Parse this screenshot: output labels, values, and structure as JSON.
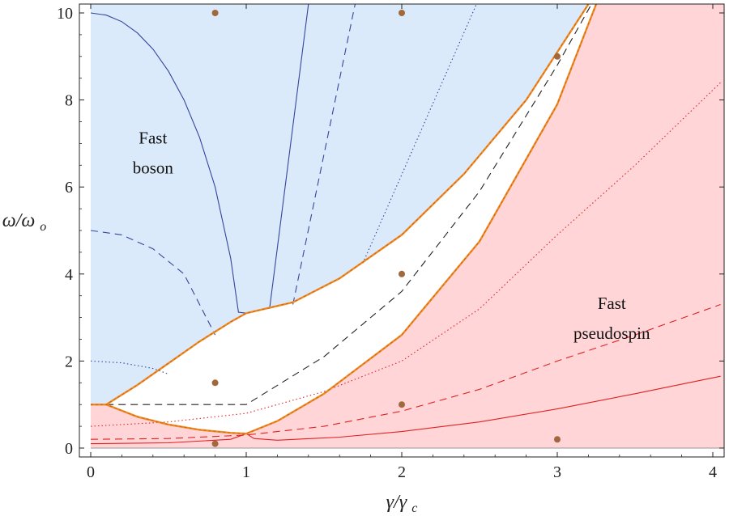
{
  "chart_data": {
    "type": "line",
    "title": "",
    "xlabel": "γ/γc",
    "ylabel": "ω/ωo",
    "xlim": [
      0,
      4.1
    ],
    "ylim": [
      0,
      10.2
    ],
    "xticks": [
      "0",
      "1",
      "2",
      "3",
      "4"
    ],
    "xtick_values": [
      0,
      1,
      2,
      3,
      4
    ],
    "yticks": [
      "0",
      "2",
      "4",
      "6",
      "8",
      "10"
    ],
    "ytick_values": [
      0,
      2,
      4,
      6,
      8,
      10
    ],
    "annotations": [
      {
        "lines": [
          "Fast",
          "boson"
        ],
        "x": 0.4,
        "y": 7.0
      },
      {
        "lines": [
          "Fast",
          "pseudospin"
        ],
        "x": 3.35,
        "y": 3.2
      }
    ],
    "colors": {
      "boson_region": "#dbeafa",
      "pseudospin_region": "#ffd5d7",
      "boundary": "#f08a24",
      "blue_curve": "#34469a",
      "red_curve": "#e02222",
      "black_curve": "#222222",
      "points": "#a0683c"
    },
    "regions": {
      "upper_boundary": [
        [
          0,
          1
        ],
        [
          0.1,
          1
        ],
        [
          0.3,
          1.45
        ],
        [
          0.5,
          1.95
        ],
        [
          0.7,
          2.45
        ],
        [
          0.9,
          2.9
        ],
        [
          1,
          3.1
        ],
        [
          1.3,
          3.35
        ],
        [
          1.6,
          3.9
        ],
        [
          2,
          4.9
        ],
        [
          2.4,
          6.3
        ],
        [
          2.8,
          8
        ],
        [
          3.2,
          10.2
        ]
      ],
      "lower_boundary": [
        [
          0,
          1
        ],
        [
          0.1,
          1
        ],
        [
          0.3,
          0.72
        ],
        [
          0.5,
          0.54
        ],
        [
          0.7,
          0.42
        ],
        [
          0.9,
          0.35
        ],
        [
          1,
          0.33
        ],
        [
          1.2,
          0.62
        ],
        [
          1.5,
          1.25
        ],
        [
          2,
          2.6
        ],
        [
          2.5,
          4.75
        ],
        [
          3,
          7.9
        ],
        [
          3.25,
          10.2
        ]
      ]
    },
    "series": [
      {
        "name": "blue solid",
        "color": "blue",
        "dash": "solid",
        "x": [
          0,
          0.1,
          0.2,
          0.3,
          0.4,
          0.5,
          0.6,
          0.7,
          0.8,
          0.9,
          0.95,
          1.0
        ],
        "y": [
          10,
          9.95,
          9.8,
          9.54,
          9.17,
          8.66,
          8,
          7.14,
          6,
          4.36,
          3.12,
          3.1
        ]
      },
      {
        "name": "blue dashed",
        "color": "blue",
        "dash": "dashed",
        "x": [
          0,
          0.2,
          0.4,
          0.6,
          0.8
        ],
        "y": [
          5,
          4.9,
          4.58,
          4.0,
          2.6
        ]
      },
      {
        "name": "blue dotted",
        "color": "blue",
        "dash": "dotted",
        "x": [
          0,
          0.2,
          0.4,
          0.5
        ],
        "y": [
          2,
          1.96,
          1.83,
          1.7
        ]
      },
      {
        "name": "blue solid steep",
        "color": "blue",
        "dash": "solid",
        "x": [
          1.15,
          1.4
        ],
        "y": [
          3.2,
          10.2
        ]
      },
      {
        "name": "blue dashed steep",
        "color": "blue",
        "dash": "dashed",
        "x": [
          1.3,
          1.7
        ],
        "y": [
          3.3,
          10.2
        ]
      },
      {
        "name": "blue dotted steep",
        "color": "blue",
        "dash": "dotted",
        "x": [
          1.75,
          2.48
        ],
        "y": [
          4.25,
          10.2
        ]
      },
      {
        "name": "black dashed",
        "color": "black",
        "dash": "dashed",
        "x": [
          0.1,
          1,
          1.5,
          2,
          2.5,
          3,
          3.22
        ],
        "y": [
          1,
          1,
          2.1,
          3.6,
          5.9,
          8.8,
          10.2
        ]
      },
      {
        "name": "red dotted",
        "color": "red",
        "dash": "dotted",
        "x": [
          0,
          0.5,
          1,
          1.5,
          2,
          2.5,
          3,
          3.5,
          4.05
        ],
        "y": [
          0.5,
          0.6,
          0.8,
          1.3,
          2.0,
          3.2,
          4.9,
          6.5,
          8.4
        ]
      },
      {
        "name": "red dashed",
        "color": "red",
        "dash": "dashed",
        "x": [
          0,
          0.5,
          1,
          1.5,
          2,
          2.5,
          3,
          3.5,
          4.05
        ],
        "y": [
          0.2,
          0.22,
          0.3,
          0.5,
          0.85,
          1.35,
          2.0,
          2.6,
          3.3
        ]
      },
      {
        "name": "red solid",
        "color": "red",
        "dash": "solid",
        "x": [
          0,
          0.5,
          0.9,
          1,
          1.05,
          1.2,
          1.6,
          2,
          2.5,
          3,
          3.5,
          4.05
        ],
        "y": [
          0.1,
          0.12,
          0.2,
          0.33,
          0.22,
          0.18,
          0.25,
          0.38,
          0.6,
          0.9,
          1.25,
          1.65
        ]
      }
    ],
    "points": [
      {
        "x": 0.8,
        "y": 10
      },
      {
        "x": 2,
        "y": 10
      },
      {
        "x": 3,
        "y": 9
      },
      {
        "x": 2,
        "y": 4
      },
      {
        "x": 0.8,
        "y": 1.5
      },
      {
        "x": 2,
        "y": 1
      },
      {
        "x": 0.8,
        "y": 0.1
      },
      {
        "x": 3,
        "y": 0.2
      }
    ]
  }
}
